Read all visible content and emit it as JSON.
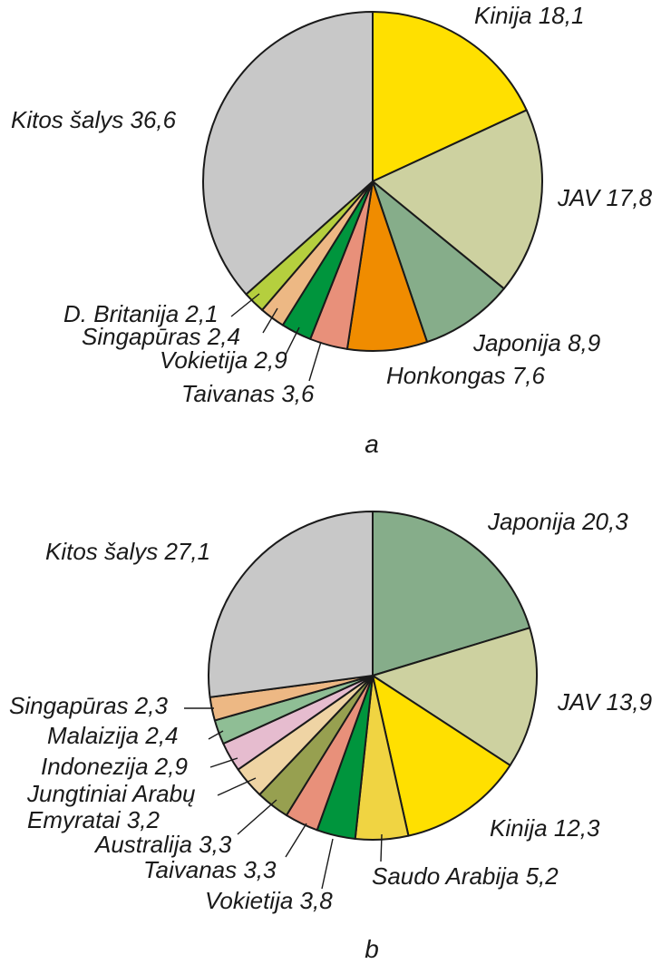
{
  "chart_data": [
    {
      "type": "pie",
      "caption": "a",
      "slices": [
        {
          "label": "Kinija 18,1",
          "value": 18.1,
          "color": "#FFE000"
        },
        {
          "label": "JAV 17,8",
          "value": 17.8,
          "color": "#CDD1A0"
        },
        {
          "label": "Japonija 8,9",
          "value": 8.9,
          "color": "#86AD8A"
        },
        {
          "label": "Honkongas 7,6",
          "value": 7.6,
          "color": "#F08C00"
        },
        {
          "label": "Taivanas 3,6",
          "value": 3.6,
          "color": "#E8907A"
        },
        {
          "label": "Vokietija 2,9",
          "value": 2.9,
          "color": "#00953D"
        },
        {
          "label": "Singapūras 2,4",
          "value": 2.4,
          "color": "#EDB884"
        },
        {
          "label": "D. Britanija 2,1",
          "value": 2.1,
          "color": "#B5CF3E"
        },
        {
          "label": "Kitos šalys 36,6",
          "value": 36.6,
          "color": "#C8C8C8"
        }
      ]
    },
    {
      "type": "pie",
      "caption": "b",
      "slices": [
        {
          "label": "Japonija 20,3",
          "value": 20.3,
          "color": "#86AD8A"
        },
        {
          "label": "JAV 13,9",
          "value": 13.9,
          "color": "#CDD1A0"
        },
        {
          "label": "Kinija 12,3",
          "value": 12.3,
          "color": "#FFE000"
        },
        {
          "label": "Saudo Arabija 5,2",
          "value": 5.2,
          "color": "#F0D442"
        },
        {
          "label": "Vokietija 3,8",
          "value": 3.8,
          "color": "#00953D"
        },
        {
          "label": "Taivanas 3,3",
          "value": 3.3,
          "color": "#E8907A"
        },
        {
          "label": "Australija 3,3",
          "value": 3.3,
          "color": "#97A050"
        },
        {
          "label": [
            "Jungtiniai Arabų",
            "Emyratai 3,2"
          ],
          "value": 3.2,
          "color": "#EFD4A4"
        },
        {
          "label": "Indonezija 2,9",
          "value": 2.9,
          "color": "#E6BCCF"
        },
        {
          "label": "Malaizija 2,4",
          "value": 2.4,
          "color": "#8FBE95"
        },
        {
          "label": "Singapūras 2,3",
          "value": 2.3,
          "color": "#EDB884"
        },
        {
          "label": "Kitos šalys 27,1",
          "value": 27.1,
          "color": "#C8C8C8"
        }
      ]
    }
  ]
}
